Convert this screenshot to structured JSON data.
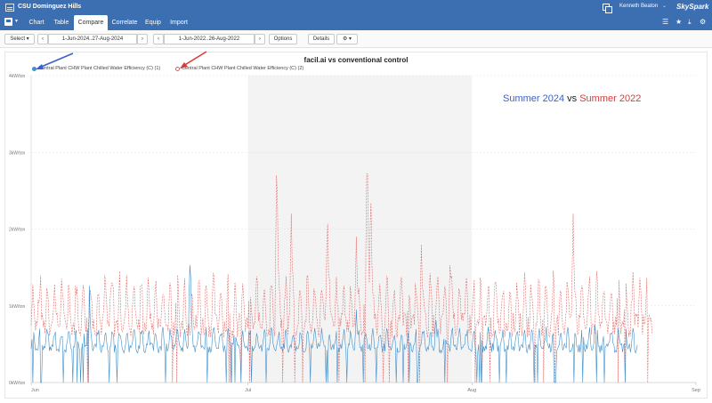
{
  "header": {
    "site_title": "CSU Dominguez Hills",
    "user_name": "Kenneth Beaton",
    "brand": "SkySpark"
  },
  "tabs": [
    {
      "label": "Chart"
    },
    {
      "label": "Table"
    },
    {
      "label": "Compare",
      "active": true
    },
    {
      "label": "Correlate"
    },
    {
      "label": "Equip"
    },
    {
      "label": "Import"
    }
  ],
  "right_icons": [
    "list-icon",
    "star-icon",
    "download-icon",
    "settings-icon"
  ],
  "toolbar": {
    "select_label": "Select",
    "date_range_1": "1-Jun-2024..27-Aug-2024",
    "date_range_2": "1-Jun-2022..26-Aug-2022",
    "options_label": "Options",
    "details_label": "Details"
  },
  "chart_data": {
    "type": "line",
    "title": "facil.ai vs conventional control",
    "legend": [
      {
        "name": "Central Plant CHW Plant Chilled Water Efficiency (C) (1)",
        "color": "#3f8fca"
      },
      {
        "name": "Central Plant CHW Plant Chilled Water Efficiency (C) (2)",
        "color": "#e05a5a"
      }
    ],
    "y_ticks": [
      "4kW/ton",
      "3kW/ton",
      "2kW/ton",
      "1kW/ton",
      "0kW/ton"
    ],
    "ylim": [
      0,
      4
    ],
    "x_ticks": [
      "Jun",
      "Jul",
      "Aug",
      "Sep"
    ],
    "x_tick_days": [
      0,
      30,
      61,
      92
    ],
    "xlim_days": [
      0,
      92
    ],
    "shaded_day_range": [
      30,
      61
    ],
    "series_1_color": "#3f8fca",
    "series_2_color": "#e05a5a",
    "series_1_baseline": 0.45,
    "series_1_end_day": 84,
    "series_2_baseline": 0.75,
    "series_2_end_day": 86,
    "series_2_peaks": [
      {
        "day": 1,
        "value": 1.2
      },
      {
        "day": 11,
        "value": 1.35
      },
      {
        "day": 34,
        "value": 3.0
      },
      {
        "day": 36,
        "value": 2.2
      },
      {
        "day": 41,
        "value": 2.3
      },
      {
        "day": 45,
        "value": 1.9
      },
      {
        "day": 46.5,
        "value": 3.2
      },
      {
        "day": 47,
        "value": 2.6
      },
      {
        "day": 54,
        "value": 1.8
      },
      {
        "day": 58,
        "value": 1.7
      },
      {
        "day": 75,
        "value": 2.2
      }
    ],
    "series_1_peaks": [
      {
        "day": 8,
        "value": 1.4
      },
      {
        "day": 22,
        "value": 1.7
      },
      {
        "day": 45,
        "value": 0.95
      },
      {
        "day": 56,
        "value": 0.9
      },
      {
        "day": 78,
        "value": 0.75
      }
    ],
    "annotation": {
      "parts": [
        {
          "text": "Summer 2024",
          "color": "#3a5fcf"
        },
        {
          "text": " vs ",
          "color": "#222222"
        },
        {
          "text": "Summer 2022",
          "color": "#d93a3a"
        }
      ]
    }
  }
}
